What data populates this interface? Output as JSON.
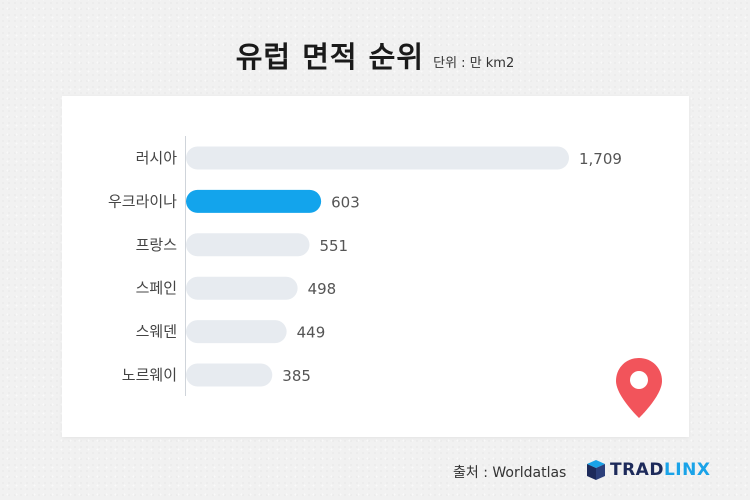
{
  "header": {
    "title": "유럽 면적 순위",
    "unit": "단위 : 만 km2"
  },
  "footer": {
    "source": "출처 : Worldatlas",
    "brand_part1": "TRAD",
    "brand_part2": "LINX"
  },
  "icons": {
    "pin": "map-pin-icon",
    "brand": "tradlinx-logo-icon"
  },
  "colors": {
    "highlight_bar": "#13a4ec",
    "default_bar": "#e7ebf0",
    "pin": "#f2545b",
    "brand_dark": "#1d2a5a",
    "brand_light": "#1aa3e8"
  },
  "chart_data": {
    "type": "bar",
    "orientation": "horizontal",
    "categories": [
      "러시아",
      "우크라이나",
      "프랑스",
      "스페인",
      "스웨덴",
      "노르웨이"
    ],
    "values": [
      1709,
      603,
      551,
      498,
      449,
      385
    ],
    "value_labels": [
      "1,709",
      "603",
      "551",
      "498",
      "449",
      "385"
    ],
    "highlight_index": 1,
    "xlim": [
      0,
      1709
    ],
    "grid": false
  }
}
